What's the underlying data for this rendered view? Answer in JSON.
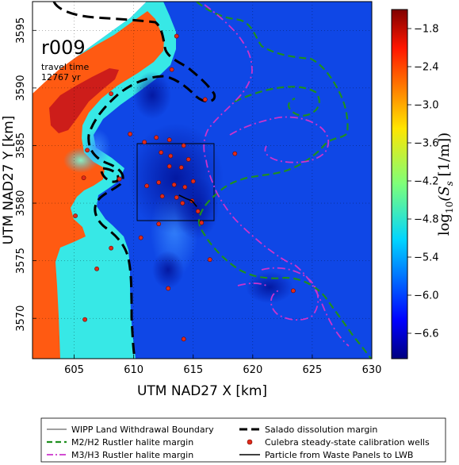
{
  "chart_data": {
    "type": "heatmap",
    "xlabel": "UTM NAD27 X [km]",
    "ylabel": "UTM NAD27 Y [km]",
    "xlim": [
      601.5,
      630
    ],
    "ylim": [
      3566.5,
      3597.5
    ],
    "x_ticks": [
      "605",
      "610",
      "615",
      "620",
      "625",
      "630"
    ],
    "x_tick_values": [
      605,
      610,
      615,
      620,
      625,
      630
    ],
    "y_ticks": [
      "3570",
      "3575",
      "3580",
      "3585",
      "3590",
      "3595"
    ],
    "y_tick_values": [
      3570,
      3575,
      3580,
      3585,
      3590,
      3595
    ],
    "grid": true,
    "annotation": {
      "realization": "r009",
      "travel_time_label": "travel time",
      "travel_time_value": "12767 yr"
    },
    "colorbar": {
      "label_prefix": "log",
      "label_subscript": "10",
      "label_suffix": "(S",
      "label_var_subscript": "s",
      "label_end": " [1/m])",
      "range": [
        -7.0,
        -1.5
      ],
      "tick_labels": [
        "−1.8",
        "−2.4",
        "−3.0",
        "−3.6",
        "−4.2",
        "−4.8",
        "−5.4",
        "−6.0",
        "−6.6"
      ],
      "tick_values": [
        -1.8,
        -2.4,
        -3.0,
        -3.6,
        -4.2,
        -4.8,
        -5.4,
        -6.0,
        -6.6
      ],
      "colormap": "jet"
    },
    "regions": {
      "background_value": -6.1,
      "high_value": -2.1,
      "cyan_value": -4.9,
      "white_nodata": true
    },
    "wipp_box": {
      "x": [
        610.7,
        616.8
      ],
      "y": [
        3578.6,
        3586.2
      ]
    },
    "calibration_wells": [
      [
        613.6,
        3594.5
      ],
      [
        613.2,
        3591.6
      ],
      [
        608.1,
        3589.5
      ],
      [
        616.0,
        3589.0
      ],
      [
        609.7,
        3586.0
      ],
      [
        610.9,
        3585.3
      ],
      [
        611.9,
        3585.7
      ],
      [
        613.0,
        3585.5
      ],
      [
        614.2,
        3585.0
      ],
      [
        606.1,
        3584.6
      ],
      [
        612.3,
        3584.4
      ],
      [
        613.1,
        3584.1
      ],
      [
        614.6,
        3583.8
      ],
      [
        618.5,
        3584.3
      ],
      [
        613.0,
        3583.2
      ],
      [
        614.0,
        3583.1
      ],
      [
        605.8,
        3582.2
      ],
      [
        608.8,
        3582.1
      ],
      [
        611.1,
        3581.5
      ],
      [
        612.1,
        3581.8
      ],
      [
        613.4,
        3581.6
      ],
      [
        614.3,
        3581.4
      ],
      [
        615.0,
        3581.9
      ],
      [
        612.4,
        3580.6
      ],
      [
        613.6,
        3580.5
      ],
      [
        614.1,
        3580.0
      ],
      [
        614.9,
        3580.2
      ],
      [
        615.4,
        3579.3
      ],
      [
        605.1,
        3578.9
      ],
      [
        615.7,
        3578.3
      ],
      [
        610.6,
        3577.0
      ],
      [
        612.1,
        3578.2
      ],
      [
        608.1,
        3576.1
      ],
      [
        616.4,
        3575.1
      ],
      [
        606.9,
        3574.3
      ],
      [
        612.9,
        3572.6
      ],
      [
        623.4,
        3572.4
      ],
      [
        605.9,
        3569.9
      ],
      [
        614.2,
        3568.2
      ]
    ],
    "particle_path": [
      [
        613.8,
        3580.7
      ],
      [
        614.4,
        3580.4
      ],
      [
        614.9,
        3580.2
      ],
      [
        615.3,
        3579.7
      ]
    ]
  },
  "legend": {
    "items": [
      {
        "label": "WIPP Land Withdrawal Boundary",
        "style": "thin-solid",
        "color": "#000000"
      },
      {
        "label": "M2/H2 Rustler halite margin",
        "style": "dashed",
        "color": "#2e8b2e"
      },
      {
        "label": "M3/H3 Rustler halite margin",
        "style": "dashdot",
        "color": "#cc33cc"
      },
      {
        "label": "Salado dissolution margin",
        "style": "thick-dashed",
        "color": "#000000"
      },
      {
        "label": "Culebra steady-state calibration wells",
        "style": "marker",
        "color": "#e02b1b"
      },
      {
        "label": "Particle from Waste Panels to LWB",
        "style": "solid",
        "color": "#000000"
      }
    ]
  },
  "colors": {
    "background_blue": "#0f47e6",
    "deep_blue": "#061db8",
    "orange": "#ff5a12",
    "red": "#c4131c",
    "cyan": "#37e8e6",
    "salado": "#000000",
    "m2h2": "#1f8f1f",
    "m3h3": "#cc33cc",
    "well": "#e02b1b"
  }
}
